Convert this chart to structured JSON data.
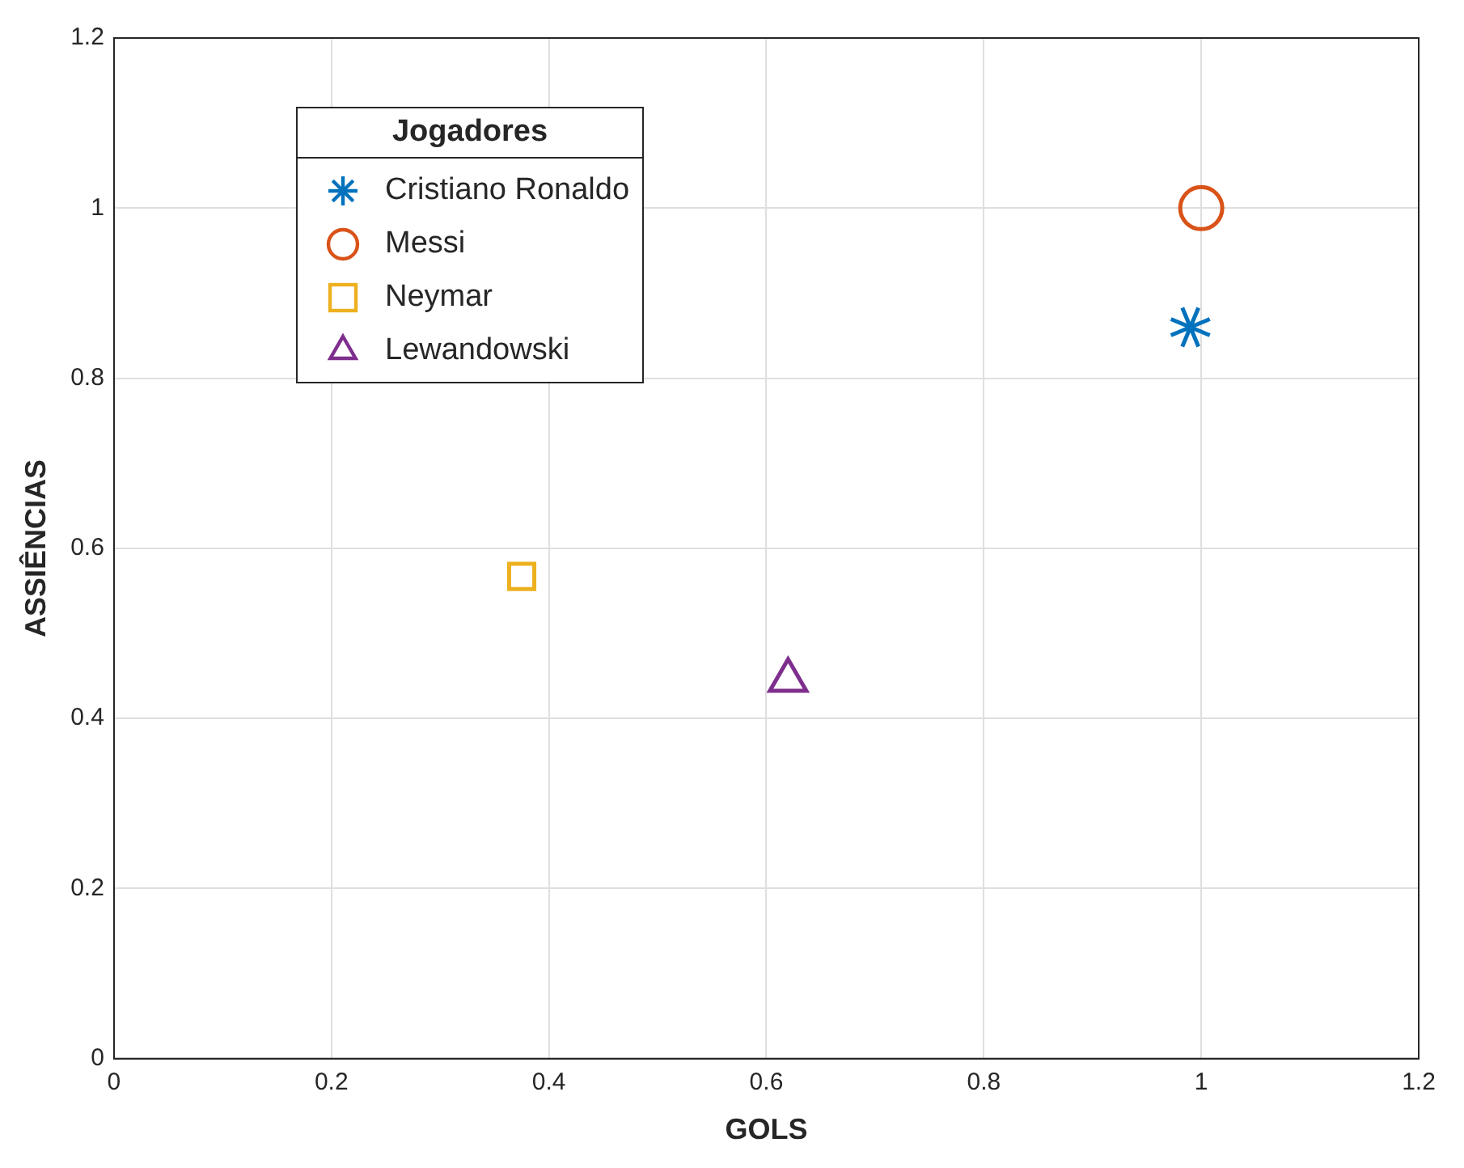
{
  "chart_data": {
    "type": "scatter",
    "xlabel": "GOLS",
    "ylabel": "ASSIÊNCIAS",
    "legend_title": "Jogadores",
    "legend": "top left",
    "grid": true,
    "xlim": [
      0,
      1.2
    ],
    "xticks": [
      0,
      0.2,
      0.4,
      0.6,
      0.8,
      1,
      1.2
    ],
    "ylim": [
      0,
      1.2
    ],
    "yticks": [
      0,
      0.2,
      0.4,
      0.6,
      0.8,
      1,
      1.2
    ],
    "series": [
      {
        "name": "Cristiano Ronaldo",
        "color": "#0072bd",
        "marker": "cross",
        "x": [
          0.99
        ],
        "values": [
          0.86
        ]
      },
      {
        "name": "Messi",
        "color": "#d95319",
        "marker": "circle",
        "x": [
          1
        ],
        "values": [
          1
        ]
      },
      {
        "name": "Neymar",
        "color": "#edb120",
        "marker": "square",
        "x": [
          0.375
        ],
        "values": [
          0.567
        ]
      },
      {
        "name": "Lewandowski",
        "color": "#7e2f8e",
        "marker": "triangle",
        "x": [
          0.62
        ],
        "values": [
          0.445
        ]
      }
    ]
  }
}
